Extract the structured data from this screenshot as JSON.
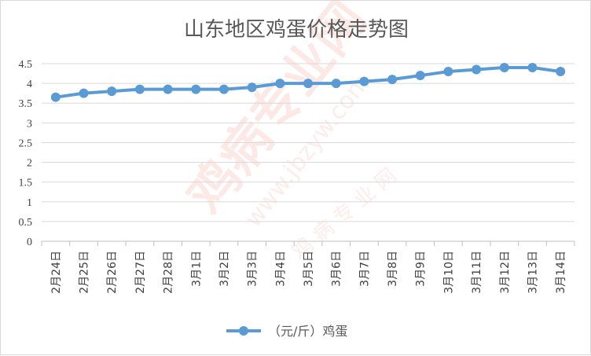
{
  "colors": {
    "series": "#5b9bd5",
    "grid": "#d9d9d9",
    "axis": "#bfbfbf",
    "text": "#595959",
    "watermark": "#e8503a"
  },
  "watermark": {
    "brand": "鸡病专业网",
    "url": "www.jbzyw.com",
    "sub": "鸡 病 专 业 网"
  },
  "chart_data": {
    "type": "line",
    "title": "山东地区鸡蛋价格走势图",
    "categories": [
      "2月24日",
      "2月25日",
      "2月26日",
      "2月27日",
      "2月28日",
      "3月1日",
      "3月2日",
      "3月3日",
      "3月4日",
      "3月5日",
      "3月6日",
      "3月7日",
      "3月8日",
      "3月9日",
      "3月10日",
      "3月11日",
      "3月12日",
      "3月13日",
      "3月14日"
    ],
    "series": [
      {
        "name": "（元/斤）鸡蛋",
        "values": [
          3.65,
          3.75,
          3.8,
          3.85,
          3.85,
          3.85,
          3.85,
          3.9,
          4.0,
          4.0,
          4.0,
          4.05,
          4.1,
          4.2,
          4.3,
          4.35,
          4.4,
          4.4,
          4.3
        ]
      }
    ],
    "ylim": [
      0,
      4.5
    ],
    "yticks": [
      "0",
      "0.5",
      "1",
      "1.5",
      "2",
      "2.5",
      "3",
      "3.5",
      "4",
      "4.5"
    ],
    "xlabel": "",
    "ylabel": "",
    "grid": true,
    "legend": "bottom"
  }
}
